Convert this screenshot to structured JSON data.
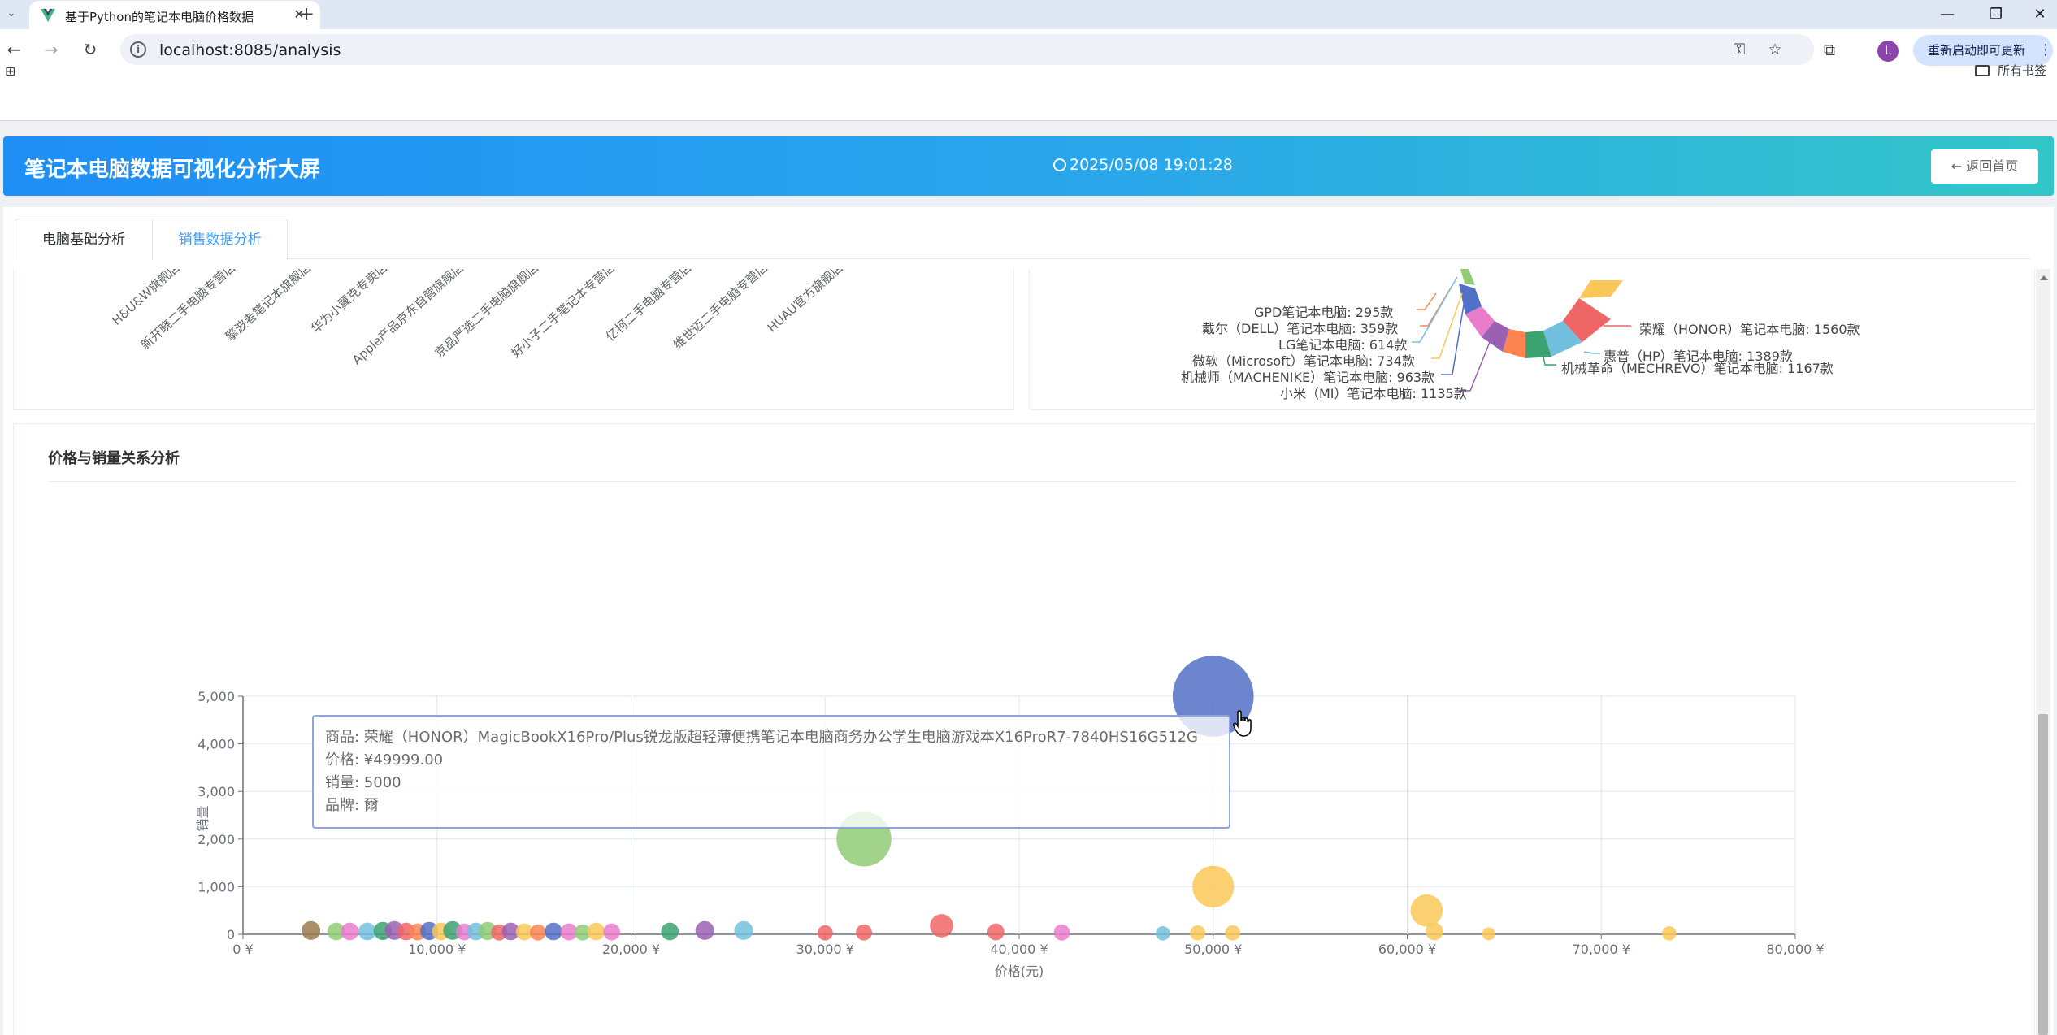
{
  "browser": {
    "tab_title": "基于Python的笔记本电脑价格数据",
    "url": "localhost:8085/analysis",
    "update_button": "重新启动即可更新",
    "profile_initial": "L",
    "bookmarks_all": "所有书签",
    "icons": [
      "chevron-down-icon",
      "vue-favicon-icon",
      "close-icon",
      "plus-icon",
      "minimize-icon",
      "restore-icon",
      "close-window-icon",
      "back-icon",
      "forward-icon",
      "reload-icon",
      "info-icon",
      "password-key-icon",
      "star-icon",
      "extensions-icon",
      "more-vert-icon",
      "apps-grid-icon",
      "folder-icon"
    ]
  },
  "header": {
    "title": "笔记本电脑数据可视化分析大屏",
    "time": "2025/05/08 19:01:28",
    "back_button": "← 返回首页"
  },
  "tabs": [
    {
      "label": "电脑基础分析",
      "active": false
    },
    {
      "label": "销售数据分析",
      "active": true
    }
  ],
  "shop_chart": {
    "category_labels": [
      "H&U&W旗舰店",
      "新开晓二手电脑专营店",
      "擎波者笔记本旗舰店",
      "华为小翼克专卖店",
      "Apple产品京东自营旗舰店",
      "京品严选二手电脑旗舰店",
      "好小子二手笔记本专营店",
      "亿柯二手电脑专营店",
      "维世迈二手电脑专营店",
      "HUAU官方旗舰店"
    ]
  },
  "brand_pie": {
    "labels_left": [
      {
        "text": "GPD笔记本电脑: 295款",
        "color": "#fc8452"
      },
      {
        "text": "戴尔（DELL）笔记本电脑: 359款",
        "color": "#fc8452"
      },
      {
        "text": "LG笔记本电脑: 614款",
        "color": "#73c0de"
      },
      {
        "text": "微软（Microsoft）笔记本电脑: 734款",
        "color": "#fac858"
      },
      {
        "text": "机械师（MACHENIKE）笔记本电脑: 963款",
        "color": "#5470c6"
      },
      {
        "text": "小米（MI）笔记本电脑: 1135款",
        "color": "#9a60b4"
      }
    ],
    "labels_right": [
      {
        "text": "荣耀（HONOR）笔记本电脑: 1560款",
        "color": "#ee6666"
      },
      {
        "text": "惠普（HP）笔记本电脑: 1389款",
        "color": "#73c0de"
      },
      {
        "text": "机械革命（MECHREVO）笔记本电脑: 1167款",
        "color": "#3ba272"
      }
    ]
  },
  "price_card": {
    "title": "价格与销量关系分析"
  },
  "chart_data": {
    "type": "scatter",
    "title": "价格与销量关系分析",
    "xlabel": "价格(元)",
    "ylabel": "销量",
    "xlim": [
      0,
      80000
    ],
    "ylim": [
      0,
      5000
    ],
    "x_ticks": [
      "0 ¥",
      "10,000 ¥",
      "20,000 ¥",
      "30,000 ¥",
      "40,000 ¥",
      "50,000 ¥",
      "60,000 ¥",
      "70,000 ¥",
      "80,000 ¥"
    ],
    "y_ticks": [
      "0",
      "1,000",
      "2,000",
      "3,000",
      "4,000",
      "5,000"
    ],
    "grid": true,
    "points": [
      {
        "x": 49999,
        "y": 5000,
        "color": "#5470c6"
      },
      {
        "x": 32000,
        "y": 2000,
        "color": "#91cc75"
      },
      {
        "x": 50000,
        "y": 1000,
        "color": "#fac858"
      },
      {
        "x": 61000,
        "y": 500,
        "color": "#fac858"
      },
      {
        "x": 36000,
        "y": 180,
        "color": "#ee6666"
      },
      {
        "x": 3500,
        "y": 80,
        "color": "#9a7b4f"
      },
      {
        "x": 4800,
        "y": 60,
        "color": "#91cc75"
      },
      {
        "x": 5500,
        "y": 60,
        "color": "#ea7ccc"
      },
      {
        "x": 6400,
        "y": 60,
        "color": "#73c0de"
      },
      {
        "x": 7200,
        "y": 70,
        "color": "#3ba272"
      },
      {
        "x": 7800,
        "y": 80,
        "color": "#9a60b4"
      },
      {
        "x": 8400,
        "y": 60,
        "color": "#ee6666"
      },
      {
        "x": 9000,
        "y": 50,
        "color": "#fc8452"
      },
      {
        "x": 9600,
        "y": 70,
        "color": "#5470c6"
      },
      {
        "x": 10200,
        "y": 60,
        "color": "#fac858"
      },
      {
        "x": 10800,
        "y": 80,
        "color": "#3ba272"
      },
      {
        "x": 11400,
        "y": 50,
        "color": "#ea7ccc"
      },
      {
        "x": 12000,
        "y": 60,
        "color": "#73c0de"
      },
      {
        "x": 12600,
        "y": 70,
        "color": "#91cc75"
      },
      {
        "x": 13200,
        "y": 40,
        "color": "#ee6666"
      },
      {
        "x": 13800,
        "y": 60,
        "color": "#9a60b4"
      },
      {
        "x": 14500,
        "y": 50,
        "color": "#fac858"
      },
      {
        "x": 15200,
        "y": 40,
        "color": "#fc8452"
      },
      {
        "x": 16000,
        "y": 60,
        "color": "#5470c6"
      },
      {
        "x": 16800,
        "y": 50,
        "color": "#ea7ccc"
      },
      {
        "x": 17500,
        "y": 40,
        "color": "#91cc75"
      },
      {
        "x": 18200,
        "y": 60,
        "color": "#fac858"
      },
      {
        "x": 19000,
        "y": 50,
        "color": "#ea7ccc"
      },
      {
        "x": 22000,
        "y": 60,
        "color": "#3ba272"
      },
      {
        "x": 23800,
        "y": 80,
        "color": "#9a60b4"
      },
      {
        "x": 25800,
        "y": 80,
        "color": "#73c0de"
      },
      {
        "x": 30000,
        "y": 30,
        "color": "#ee6666"
      },
      {
        "x": 32000,
        "y": 40,
        "color": "#ee6666"
      },
      {
        "x": 38800,
        "y": 50,
        "color": "#ee6666"
      },
      {
        "x": 42200,
        "y": 40,
        "color": "#ea7ccc"
      },
      {
        "x": 47400,
        "y": 20,
        "color": "#73c0de"
      },
      {
        "x": 49200,
        "y": 30,
        "color": "#fac858"
      },
      {
        "x": 51000,
        "y": 30,
        "color": "#fac858"
      },
      {
        "x": 61400,
        "y": 60,
        "color": "#fac858"
      },
      {
        "x": 64200,
        "y": 10,
        "color": "#fac858"
      },
      {
        "x": 73500,
        "y": 20,
        "color": "#fac858"
      }
    ]
  },
  "tooltip": {
    "product": "商品: 荣耀（HONOR）MagicBookX16Pro/Plus锐龙版超轻薄便携笔记本电脑商务办公学生电脑游戏本X16ProR7-7840HS16G512G",
    "price": "价格: ¥49999.00",
    "sales": "销量: 5000",
    "brand": "品牌: 爾"
  }
}
